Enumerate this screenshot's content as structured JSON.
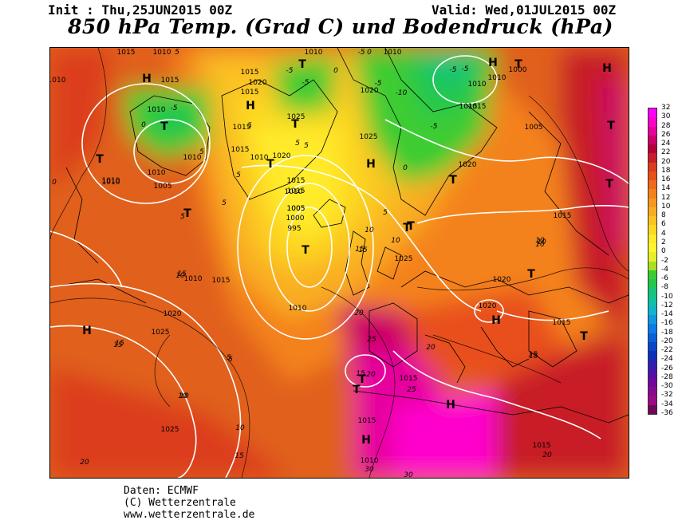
{
  "header": {
    "init_text": "Init : Thu,25JUN2015 00Z",
    "valid_text": "Valid: Wed,01JUL2015 00Z",
    "title": "850 hPa Temp. (Grad C) und Bodendruck (hPa)"
  },
  "colorbar": {
    "labels": [
      "32",
      "30",
      "28",
      "26",
      "24",
      "22",
      "20",
      "18",
      "16",
      "14",
      "12",
      "10",
      "8",
      "6",
      "4",
      "2",
      "0",
      "-2",
      "-4",
      "-6",
      "-8",
      "-10",
      "-12",
      "-14",
      "-16",
      "-18",
      "-20",
      "-22",
      "-24",
      "-26",
      "-28",
      "-30",
      "-32",
      "-34",
      "-36"
    ],
    "colors": [
      "#ff00ff",
      "#ff00cc",
      "#e6009c",
      "#cc0066",
      "#b3003a",
      "#c81e28",
      "#dc3c1e",
      "#e8501a",
      "#ef6a1a",
      "#f4821c",
      "#f7981e",
      "#f9ad20",
      "#fbc320",
      "#fdd820",
      "#ffeb2a",
      "#fff430",
      "#e6f028",
      "#a8e024",
      "#3ccc30",
      "#20c850",
      "#18c47c",
      "#10c0a8",
      "#10b4cc",
      "#1098e0",
      "#0a7ce6",
      "#085fd8",
      "#0a44c8",
      "#0c30b8",
      "#3020b0",
      "#5010a8",
      "#70089c",
      "#880890",
      "#9c0a84",
      "#70085a"
    ]
  },
  "map": {
    "pressure_labels": [
      {
        "t": "1010"
      },
      {
        "t": "1015"
      },
      {
        "t": "1010"
      },
      {
        "t": "1010"
      },
      {
        "t": "1015"
      },
      {
        "t": "1010"
      },
      {
        "t": "1000"
      },
      {
        "t": "1010"
      },
      {
        "t": "1015"
      },
      {
        "t": "1020"
      },
      {
        "t": "1010"
      },
      {
        "t": "1020"
      },
      {
        "t": "1015"
      },
      {
        "t": "1025"
      },
      {
        "t": "1010"
      },
      {
        "t": "1015"
      },
      {
        "t": "1010"
      },
      {
        "t": "1015"
      },
      {
        "t": "1005"
      },
      {
        "t": "1010"
      },
      {
        "t": "1015"
      },
      {
        "t": "1020"
      },
      {
        "t": "1005"
      },
      {
        "t": "1025"
      },
      {
        "t": "1010"
      },
      {
        "t": "1015"
      },
      {
        "t": "1020"
      },
      {
        "t": "1010"
      },
      {
        "t": "1005"
      },
      {
        "t": "1010"
      },
      {
        "t": "1015"
      },
      {
        "t": "1005"
      },
      {
        "t": "1000"
      },
      {
        "t": "995"
      },
      {
        "t": "1015"
      },
      {
        "t": "1010"
      },
      {
        "t": "1010"
      },
      {
        "t": "1015"
      },
      {
        "t": "1025"
      },
      {
        "t": "1020"
      },
      {
        "t": "1020"
      },
      {
        "t": "1015"
      },
      {
        "t": "1010"
      },
      {
        "t": "1020"
      },
      {
        "t": "1025"
      },
      {
        "t": "1015"
      },
      {
        "t": "1015"
      },
      {
        "t": "1015"
      },
      {
        "t": "1025"
      },
      {
        "t": "1010"
      },
      {
        "t": "1015"
      }
    ],
    "temp_labels": [
      {
        "t": "5"
      },
      {
        "t": "-5"
      },
      {
        "t": "0"
      },
      {
        "t": "-5"
      },
      {
        "t": "-5"
      },
      {
        "t": "-5"
      },
      {
        "t": "0"
      },
      {
        "t": "-5"
      },
      {
        "t": "0"
      },
      {
        "t": "-5"
      },
      {
        "t": "-10"
      },
      {
        "t": "-5"
      },
      {
        "t": "-5"
      },
      {
        "t": "5"
      },
      {
        "t": "5"
      },
      {
        "t": "5"
      },
      {
        "t": "5"
      },
      {
        "t": "0"
      },
      {
        "t": "5"
      },
      {
        "t": "5"
      },
      {
        "t": "0"
      },
      {
        "t": "5"
      },
      {
        "t": "5"
      },
      {
        "t": "10"
      },
      {
        "t": "10"
      },
      {
        "t": "15"
      },
      {
        "t": "10"
      },
      {
        "t": "10"
      },
      {
        "t": "15"
      },
      {
        "t": "20"
      },
      {
        "t": "25"
      },
      {
        "t": "20"
      },
      {
        "t": "15"
      },
      {
        "t": "15"
      },
      {
        "t": "10"
      },
      {
        "t": "5"
      },
      {
        "t": "10"
      },
      {
        "t": "10"
      },
      {
        "t": "15"
      },
      {
        "t": "15"
      },
      {
        "t": "20"
      },
      {
        "t": "25"
      },
      {
        "t": "15"
      },
      {
        "t": "20"
      },
      {
        "t": "20"
      },
      {
        "t": "30"
      },
      {
        "t": "30"
      },
      {
        "t": "10"
      },
      {
        "t": "10"
      },
      {
        "t": "15"
      },
      {
        "t": "15"
      },
      {
        "t": "5"
      }
    ],
    "centers": [
      {
        "t": "H"
      },
      {
        "t": "T"
      },
      {
        "t": "T"
      },
      {
        "t": "T"
      },
      {
        "t": "H"
      },
      {
        "t": "H"
      },
      {
        "t": "T"
      },
      {
        "t": "T"
      },
      {
        "t": "T"
      },
      {
        "t": "T"
      },
      {
        "t": "H"
      },
      {
        "t": "T"
      },
      {
        "t": "T"
      },
      {
        "t": "T"
      },
      {
        "t": "T"
      },
      {
        "t": "T"
      },
      {
        "t": "T"
      },
      {
        "t": "H"
      },
      {
        "t": "H"
      },
      {
        "t": "T"
      },
      {
        "t": "T"
      },
      {
        "t": "H"
      },
      {
        "t": "H"
      },
      {
        "t": "T"
      },
      {
        "t": "H"
      },
      {
        "t": "T"
      }
    ]
  },
  "footer": {
    "line1": "Daten: ECMWF",
    "line2": "(C) Wetterzentrale",
    "line3": "www.wetterzentrale.de"
  }
}
